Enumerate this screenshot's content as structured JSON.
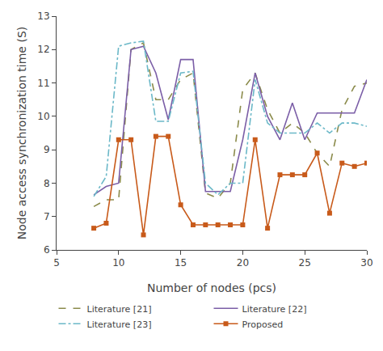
{
  "chart_data": {
    "type": "line",
    "xlabel": "Number of nodes (pcs)",
    "ylabel": "Node access synchronization time (S)",
    "x": [
      8,
      9,
      10,
      11,
      12,
      13,
      14,
      15,
      16,
      17,
      18,
      19,
      20,
      21,
      22,
      23,
      24,
      25,
      26,
      27,
      28,
      29,
      30
    ],
    "series": [
      {
        "name": "Literature [21]",
        "color": "#8B8B4B",
        "line_style": "dashed",
        "marker": "none",
        "values": [
          7.3,
          7.5,
          7.5,
          12.0,
          12.2,
          10.5,
          10.5,
          11.1,
          11.3,
          7.7,
          7.55,
          8.0,
          10.8,
          11.3,
          10.2,
          9.5,
          9.8,
          9.5,
          8.9,
          8.5,
          10.2,
          10.9,
          11.0
        ]
      },
      {
        "name": "Literature [22]",
        "color": "#7B5EA7",
        "line_style": "solid",
        "marker": "none",
        "values": [
          7.65,
          7.9,
          8.0,
          12.0,
          12.1,
          11.3,
          9.9,
          11.7,
          11.7,
          7.75,
          7.75,
          7.75,
          9.3,
          11.3,
          10.0,
          9.3,
          10.4,
          9.3,
          10.1,
          10.1,
          10.1,
          10.1,
          11.1
        ]
      },
      {
        "name": "Literature [23]",
        "color": "#6BB8C8",
        "line_style": "dashdot",
        "marker": "none",
        "values": [
          7.6,
          8.2,
          12.1,
          12.2,
          12.25,
          9.85,
          9.85,
          11.3,
          11.35,
          8.0,
          7.65,
          8.0,
          8.0,
          11.1,
          9.8,
          9.5,
          9.5,
          9.5,
          9.8,
          9.5,
          9.8,
          9.8,
          9.7
        ]
      },
      {
        "name": "Proposed",
        "color": "#C85A1A",
        "line_style": "solid",
        "marker": "square",
        "values": [
          6.65,
          6.8,
          9.3,
          9.3,
          6.45,
          9.4,
          9.4,
          7.35,
          6.75,
          6.75,
          6.75,
          6.75,
          6.75,
          9.3,
          6.65,
          8.25,
          8.25,
          8.25,
          8.9,
          7.1,
          8.6,
          8.5,
          8.6
        ]
      }
    ],
    "xlim": [
      5,
      30
    ],
    "xticks": [
      5,
      10,
      15,
      20,
      25,
      30
    ],
    "ylim": [
      6,
      13
    ],
    "yticks": [
      6,
      7,
      8,
      9,
      10,
      11,
      12,
      13
    ],
    "grid": false,
    "legend": "bottom"
  }
}
